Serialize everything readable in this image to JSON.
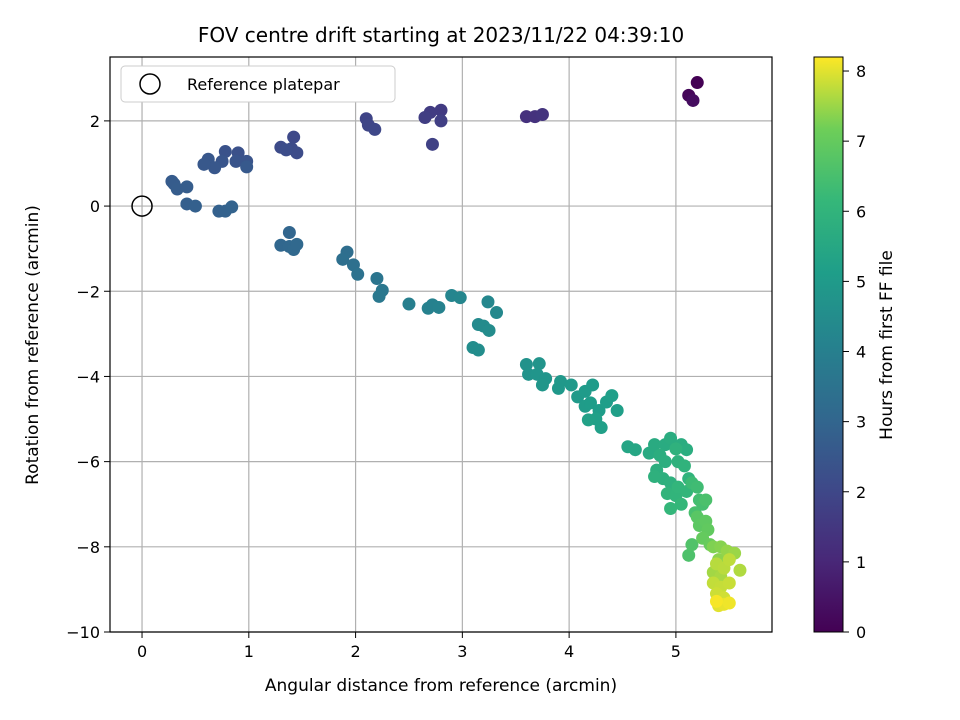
{
  "chart_data": {
    "type": "scatter",
    "title": "FOV centre drift starting at 2023/11/22 04:39:10",
    "xlabel": "Angular distance from reference (arcmin)",
    "ylabel": "Rotation from reference (arcmin)",
    "xlim": [
      -0.3,
      5.9
    ],
    "ylim": [
      -10,
      3.5
    ],
    "xticks": [
      0,
      1,
      2,
      3,
      4,
      5
    ],
    "yticks": [
      -10,
      -8,
      -6,
      -4,
      -2,
      0,
      2
    ],
    "grid": true,
    "legend": {
      "placement": "top-left",
      "entries": [
        "Reference platepar"
      ]
    },
    "reference_point": {
      "x": 0,
      "y": 0
    },
    "colorbar": {
      "label": "Hours from first FF file",
      "colormap": "viridis",
      "range": [
        0,
        8.2
      ],
      "ticks": [
        0,
        1,
        2,
        3,
        4,
        5,
        6,
        7,
        8
      ]
    },
    "points": [
      [
        5.2,
        2.9,
        0.0
      ],
      [
        5.12,
        2.6,
        0.15
      ],
      [
        5.16,
        2.48,
        0.3
      ],
      [
        3.6,
        2.1,
        1.3
      ],
      [
        3.68,
        2.1,
        1.35
      ],
      [
        3.75,
        2.15,
        1.4
      ],
      [
        2.8,
        2.25,
        1.6
      ],
      [
        2.7,
        2.2,
        1.65
      ],
      [
        2.65,
        2.08,
        1.7
      ],
      [
        2.8,
        2.0,
        1.75
      ],
      [
        2.72,
        1.45,
        1.8
      ],
      [
        2.1,
        2.05,
        1.9
      ],
      [
        2.12,
        1.9,
        1.95
      ],
      [
        2.18,
        1.8,
        2.0
      ],
      [
        1.42,
        1.62,
        2.05
      ],
      [
        1.4,
        1.35,
        2.1
      ],
      [
        1.3,
        1.38,
        2.12
      ],
      [
        1.45,
        1.25,
        2.15
      ],
      [
        1.35,
        1.32,
        2.18
      ],
      [
        0.9,
        1.25,
        2.3
      ],
      [
        0.78,
        1.28,
        2.35
      ],
      [
        0.98,
        1.05,
        2.4
      ],
      [
        0.88,
        1.05,
        2.42
      ],
      [
        0.75,
        1.05,
        2.45
      ],
      [
        0.62,
        1.1,
        2.5
      ],
      [
        0.68,
        0.9,
        2.52
      ],
      [
        0.58,
        0.98,
        2.55
      ],
      [
        0.98,
        0.92,
        2.58
      ],
      [
        0.28,
        0.58,
        2.65
      ],
      [
        0.3,
        0.52,
        2.68
      ],
      [
        0.33,
        0.4,
        2.7
      ],
      [
        0.42,
        0.45,
        2.72
      ],
      [
        0.42,
        0.05,
        2.78
      ],
      [
        0.5,
        0.0,
        2.8
      ],
      [
        0.72,
        -0.12,
        2.85
      ],
      [
        0.78,
        -0.12,
        2.87
      ],
      [
        0.84,
        -0.02,
        2.9
      ],
      [
        1.38,
        -0.62,
        3.0
      ],
      [
        1.3,
        -0.92,
        3.05
      ],
      [
        1.38,
        -0.95,
        3.08
      ],
      [
        1.42,
        -1.02,
        3.1
      ],
      [
        1.45,
        -0.9,
        3.12
      ],
      [
        1.92,
        -1.08,
        3.3
      ],
      [
        1.88,
        -1.25,
        3.35
      ],
      [
        1.98,
        -1.38,
        3.4
      ],
      [
        2.02,
        -1.6,
        3.45
      ],
      [
        2.2,
        -1.7,
        3.6
      ],
      [
        2.25,
        -1.98,
        3.65
      ],
      [
        2.22,
        -2.12,
        3.7
      ],
      [
        2.5,
        -2.3,
        4.0
      ],
      [
        2.68,
        -2.4,
        4.05
      ],
      [
        2.72,
        -2.32,
        4.08
      ],
      [
        2.78,
        -2.38,
        4.1
      ],
      [
        2.9,
        -2.1,
        4.2
      ],
      [
        2.98,
        -2.15,
        4.25
      ],
      [
        3.24,
        -2.25,
        4.3
      ],
      [
        3.32,
        -2.5,
        4.32
      ],
      [
        3.15,
        -2.78,
        4.4
      ],
      [
        3.2,
        -2.82,
        4.42
      ],
      [
        3.25,
        -2.92,
        4.45
      ],
      [
        3.1,
        -3.32,
        4.5
      ],
      [
        3.15,
        -3.38,
        4.52
      ],
      [
        3.6,
        -3.72,
        4.7
      ],
      [
        3.62,
        -3.95,
        4.72
      ],
      [
        3.72,
        -3.7,
        4.75
      ],
      [
        3.7,
        -3.95,
        4.78
      ],
      [
        3.78,
        -4.05,
        4.8
      ],
      [
        3.75,
        -4.2,
        4.82
      ],
      [
        3.92,
        -4.12,
        4.9
      ],
      [
        3.9,
        -4.28,
        4.92
      ],
      [
        4.02,
        -4.2,
        4.95
      ],
      [
        4.08,
        -4.48,
        4.98
      ],
      [
        4.15,
        -4.35,
        5.0
      ],
      [
        4.22,
        -4.2,
        5.02
      ],
      [
        4.15,
        -4.7,
        5.05
      ],
      [
        4.2,
        -4.62,
        5.08
      ],
      [
        4.28,
        -4.8,
        5.1
      ],
      [
        4.35,
        -4.6,
        5.12
      ],
      [
        4.4,
        -4.45,
        5.15
      ],
      [
        4.45,
        -4.8,
        5.18
      ],
      [
        4.25,
        -5.0,
        5.2
      ],
      [
        4.3,
        -5.2,
        5.22
      ],
      [
        4.18,
        -5.02,
        5.25
      ],
      [
        4.55,
        -5.65,
        5.4
      ],
      [
        4.62,
        -5.72,
        5.45
      ],
      [
        4.75,
        -5.8,
        5.6
      ],
      [
        4.8,
        -5.6,
        5.62
      ],
      [
        4.9,
        -5.6,
        5.65
      ],
      [
        4.95,
        -5.45,
        5.68
      ],
      [
        5.05,
        -5.6,
        5.7
      ],
      [
        5.1,
        -5.72,
        5.72
      ],
      [
        4.85,
        -5.85,
        5.75
      ],
      [
        4.9,
        -6.0,
        5.78
      ],
      [
        4.82,
        -6.2,
        5.8
      ],
      [
        4.88,
        -6.4,
        5.82
      ],
      [
        4.95,
        -6.5,
        5.85
      ],
      [
        4.8,
        -6.35,
        5.88
      ],
      [
        5.0,
        -5.7,
        5.9
      ],
      [
        5.02,
        -6.0,
        5.92
      ],
      [
        5.08,
        -6.1,
        5.95
      ],
      [
        5.12,
        -6.4,
        5.98
      ],
      [
        4.92,
        -6.75,
        6.0
      ],
      [
        5.0,
        -6.8,
        6.02
      ],
      [
        5.02,
        -6.6,
        6.05
      ],
      [
        5.1,
        -6.7,
        6.08
      ],
      [
        4.95,
        -7.1,
        6.1
      ],
      [
        5.05,
        -7.0,
        6.12
      ],
      [
        5.15,
        -6.5,
        6.3
      ],
      [
        5.2,
        -6.6,
        6.35
      ],
      [
        5.22,
        -6.9,
        6.4
      ],
      [
        5.25,
        -7.0,
        6.45
      ],
      [
        5.18,
        -7.2,
        6.5
      ],
      [
        5.28,
        -6.9,
        6.55
      ],
      [
        5.12,
        -8.2,
        6.6
      ],
      [
        5.15,
        -7.95,
        6.65
      ],
      [
        5.2,
        -7.3,
        6.8
      ],
      [
        5.22,
        -7.5,
        6.85
      ],
      [
        5.28,
        -7.4,
        6.9
      ],
      [
        5.3,
        -7.6,
        6.95
      ],
      [
        5.25,
        -7.8,
        7.0
      ],
      [
        5.32,
        -7.95,
        7.05
      ],
      [
        5.35,
        -8.0,
        7.3
      ],
      [
        5.42,
        -8.0,
        7.35
      ],
      [
        5.4,
        -8.3,
        7.4
      ],
      [
        5.48,
        -8.1,
        7.45
      ],
      [
        5.55,
        -8.15,
        7.5
      ],
      [
        5.35,
        -8.6,
        7.55
      ],
      [
        5.42,
        -8.7,
        7.6
      ],
      [
        5.6,
        -8.55,
        7.65
      ],
      [
        5.38,
        -8.4,
        7.7
      ],
      [
        5.45,
        -8.5,
        7.72
      ],
      [
        5.5,
        -8.3,
        7.75
      ],
      [
        5.35,
        -8.85,
        7.78
      ],
      [
        5.42,
        -8.95,
        7.8
      ],
      [
        5.5,
        -8.85,
        7.82
      ],
      [
        5.38,
        -9.1,
        7.85
      ],
      [
        5.45,
        -9.2,
        7.88
      ],
      [
        5.4,
        -9.38,
        8.0
      ],
      [
        5.45,
        -9.35,
        8.05
      ],
      [
        5.5,
        -9.32,
        8.1
      ],
      [
        5.38,
        -9.28,
        8.15
      ]
    ]
  }
}
